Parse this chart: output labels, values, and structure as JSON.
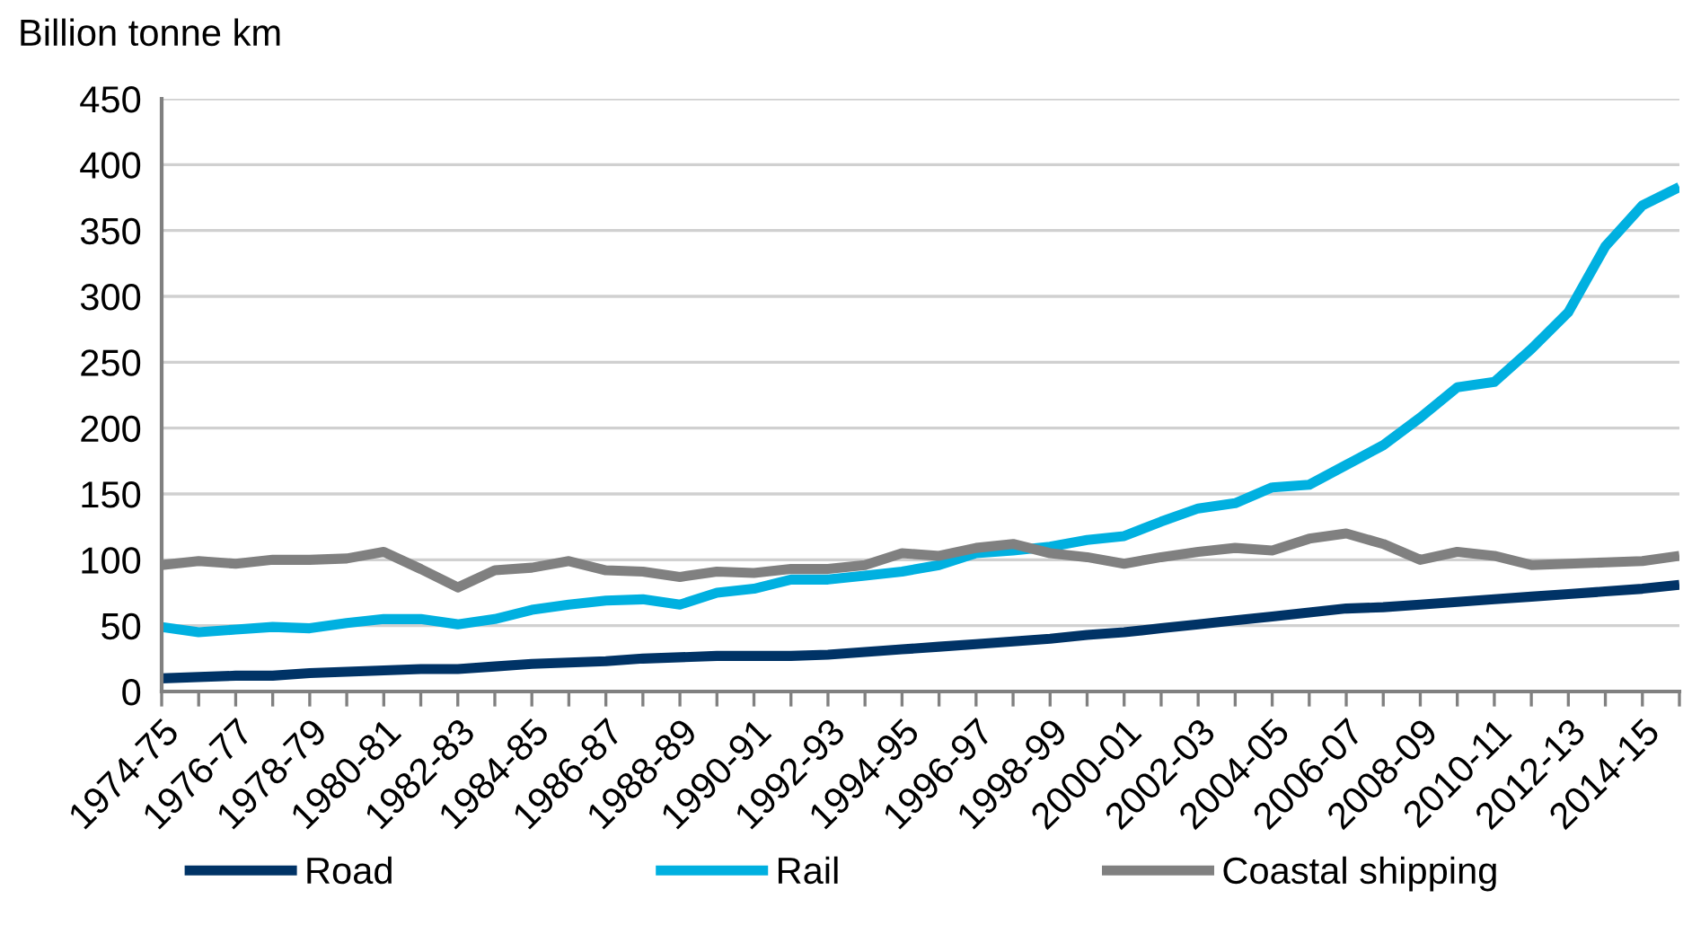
{
  "chart_data": {
    "type": "line",
    "ylabel": "Billion tonne km",
    "categories": [
      "1974-75",
      null,
      "1976-77",
      null,
      "1978-79",
      null,
      "1980-81",
      null,
      "1982-83",
      null,
      "1984-85",
      null,
      "1986-87",
      null,
      "1988-89",
      null,
      "1990-91",
      null,
      "1992-93",
      null,
      "1994-95",
      null,
      "1996-97",
      null,
      "1998-99",
      null,
      "2000-01",
      null,
      "2002-03",
      null,
      "2004-05",
      null,
      "2006-07",
      null,
      "2008-09",
      null,
      "2010-11",
      null,
      "2012-13",
      null,
      "2014-15",
      null
    ],
    "series": [
      {
        "name": "Road",
        "color": "#003366",
        "values": [
          10,
          11,
          12,
          12,
          14,
          15,
          16,
          17,
          17,
          19,
          21,
          22,
          23,
          25,
          26,
          27,
          27,
          27,
          28,
          30,
          32,
          34,
          36,
          38,
          40,
          43,
          45,
          48,
          51,
          54,
          57,
          60,
          63,
          64,
          66,
          68,
          70,
          72,
          74,
          76,
          78,
          81
        ]
      },
      {
        "name": "Rail",
        "color": "#00b0e0",
        "values": [
          49,
          45,
          47,
          49,
          48,
          52,
          55,
          55,
          51,
          55,
          62,
          66,
          69,
          70,
          66,
          75,
          78,
          85,
          85,
          88,
          91,
          96,
          105,
          107,
          110,
          115,
          118,
          129,
          139,
          143,
          155,
          157,
          172,
          187,
          208,
          231,
          235,
          260,
          288,
          338,
          369,
          383
        ]
      },
      {
        "name": "Coastal shipping",
        "color": "#808080",
        "values": [
          96,
          99,
          97,
          100,
          100,
          101,
          106,
          93,
          79,
          92,
          94,
          99,
          92,
          91,
          87,
          91,
          90,
          93,
          93,
          96,
          105,
          103,
          109,
          112,
          105,
          102,
          97,
          102,
          106,
          109,
          107,
          116,
          120,
          112,
          100,
          106,
          103,
          96,
          97,
          98,
          99,
          103
        ]
      }
    ],
    "ylim": [
      0,
      450
    ],
    "yticks": [
      0,
      50,
      100,
      150,
      200,
      250,
      300,
      350,
      400,
      450
    ],
    "grid": "y",
    "legend": "bottom",
    "marker": "none",
    "line_style": "solid"
  }
}
